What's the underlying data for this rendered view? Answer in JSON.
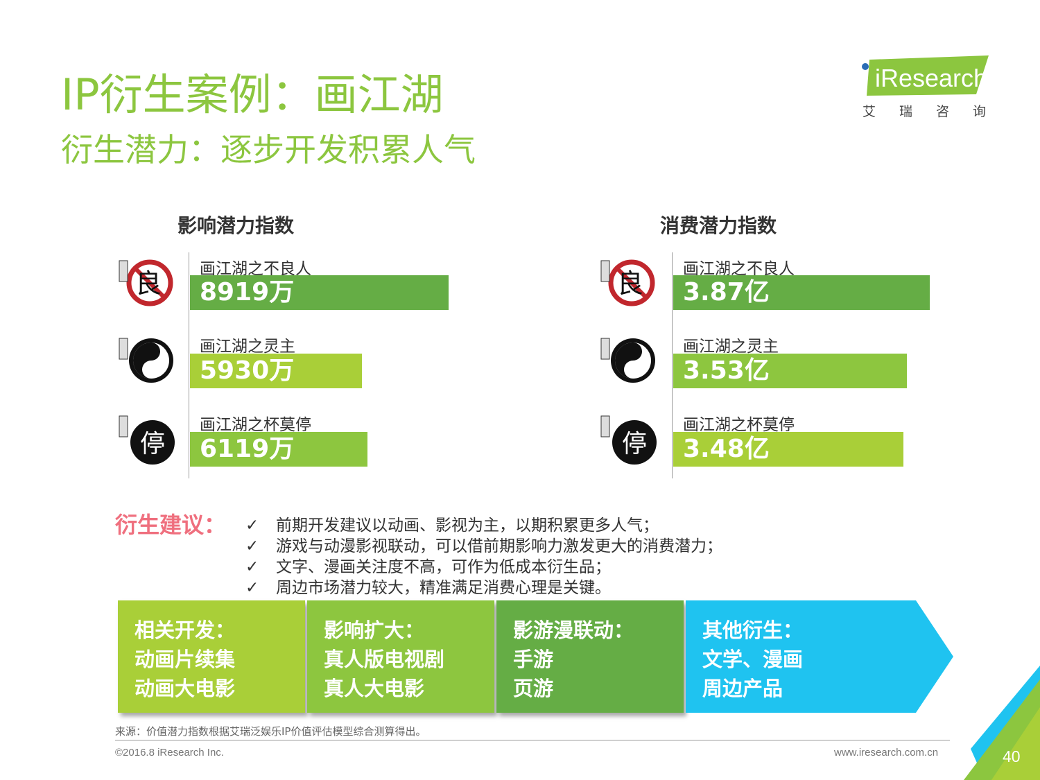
{
  "header": {
    "title": "IP衍生案例：画江湖",
    "subtitle": "衍生潜力：逐步开发积累人气"
  },
  "logo": {
    "brand_text": "iResearch",
    "brand_cn": "艾瑞咨询"
  },
  "chart_data": [
    {
      "type": "bar",
      "orientation": "horizontal",
      "title": "影响潜力指数",
      "categories": [
        "画江湖之不良人",
        "画江湖之灵主",
        "画江湖之杯莫停"
      ],
      "values": [
        8919,
        5930,
        6119
      ],
      "unit": "万",
      "labels": [
        "8919万",
        "5930万",
        "6119万"
      ],
      "xlim": [
        0,
        12500
      ],
      "colors": [
        "#65ad45",
        "#a9cf38",
        "#8dc63f"
      ]
    },
    {
      "type": "bar",
      "orientation": "horizontal",
      "title": "消费潜力指数",
      "categories": [
        "画江湖之不良人",
        "画江湖之灵主",
        "画江湖之杯莫停"
      ],
      "values": [
        3.87,
        3.53,
        3.48
      ],
      "unit": "亿",
      "labels": [
        "3.87亿",
        "3.53亿",
        "3.48亿"
      ],
      "xlim": [
        0,
        4.0
      ],
      "colors": [
        "#65ad45",
        "#8dc63f",
        "#a9cf38"
      ]
    }
  ],
  "advice": {
    "label": "衍生建议：",
    "check_symbol": "✓",
    "items": [
      "前期开发建议以动画、影视为主，以期积累更多人气；",
      "游戏与动漫影视联动，可以借前期影响力激发更大的消费潜力；",
      "文字、漫画关注度不高，可作为低成本衍生品；",
      "周边市场潜力较大，精准满足消费心理是关键。"
    ]
  },
  "stages": [
    {
      "lines": [
        "相关开发：",
        "动画片续集",
        "动画大电影"
      ],
      "color": "#a9cf38"
    },
    {
      "lines": [
        "影响扩大：",
        "真人版电视剧",
        "真人大电影"
      ],
      "color": "#8dc63f"
    },
    {
      "lines": [
        "影游漫联动：",
        "手游",
        "页游"
      ],
      "color": "#65ad45"
    },
    {
      "lines": [
        "其他衍生：",
        "文学、漫画",
        "周边产品"
      ],
      "color": "#1fc3f0"
    }
  ],
  "footer": {
    "source": "来源：价值潜力指数根据艾瑞泛娱乐IP价值评估模型综合测算得出。",
    "copyright": "©2016.8 iResearch Inc.",
    "website": "www.iresearch.com.cn",
    "page_number": "40"
  },
  "icons": [
    "seal-buliangren-icon",
    "seal-lingzhu-icon",
    "seal-beimoting-icon",
    "checkmark-icon",
    "corner-triangle-decoration"
  ]
}
